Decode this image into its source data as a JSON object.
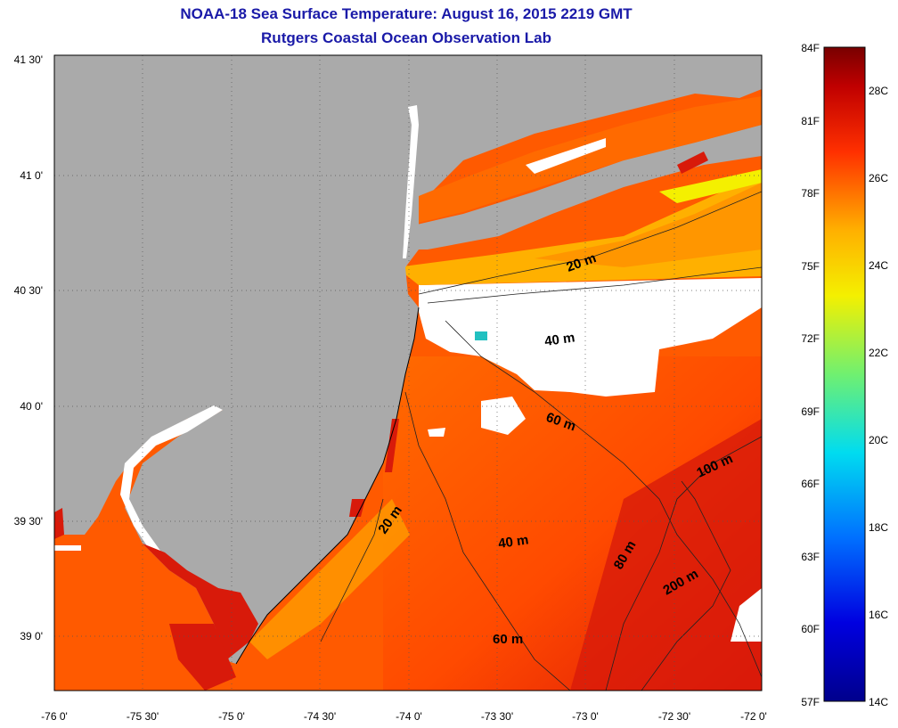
{
  "header": {
    "title": "NOAA-18 Sea Surface Temperature:  August 16, 2015 2219 GMT",
    "subtitle": "Rutgers Coastal Ocean Observation Lab"
  },
  "map": {
    "lat_labels": [
      "41 30'",
      "41 0'",
      "40 30'",
      "40 0'",
      "39 30'",
      "39 0'"
    ],
    "lon_labels": [
      "-76 0'",
      "-75 30'",
      "-75 0'",
      "-74 30'",
      "-74 0'",
      "-73 30'",
      "-73 0'",
      "-72 30'",
      "-72 0'"
    ],
    "isobath_labels": [
      {
        "id": "20m-north",
        "text": "20 m"
      },
      {
        "id": "40m-north",
        "text": "40 m"
      },
      {
        "id": "60m-north",
        "text": "60 m"
      },
      {
        "id": "100m",
        "text": "100 m"
      },
      {
        "id": "20m-south",
        "text": "20 m"
      },
      {
        "id": "40m-south",
        "text": "40 m"
      },
      {
        "id": "80m",
        "text": "80 m"
      },
      {
        "id": "200m",
        "text": "200 m"
      },
      {
        "id": "60m-south",
        "text": "60 m"
      }
    ],
    "colors": {
      "land": "#aaaaaa",
      "no_data": "#ffffff",
      "ocean_warm": "#ff5a00",
      "ocean_hot": "#d81a0a",
      "coast": "#000000"
    }
  },
  "colorbar": {
    "fahrenheit_labels": [
      "84F",
      "81F",
      "78F",
      "75F",
      "72F",
      "69F",
      "66F",
      "63F",
      "60F",
      "57F"
    ],
    "celsius_labels": [
      "28C",
      "26C",
      "24C",
      "22C",
      "20C",
      "18C",
      "16C",
      "14C"
    ]
  }
}
